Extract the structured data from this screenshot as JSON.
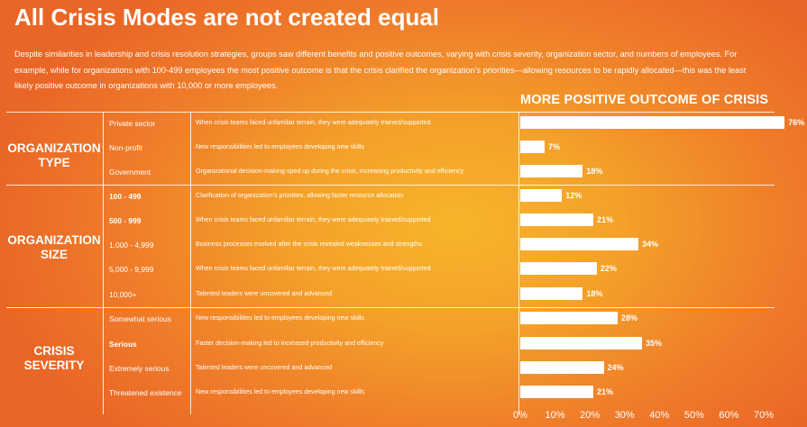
{
  "header": {
    "title": "All Crisis Modes are not created equal",
    "intro_line1": "Despite similarities in leadership and crisis resolution strategies, groups saw different benefits and positive outcomes, varying with crisis severity, organization sector, and numbers of employees. For",
    "intro_line2": "example, while for organizations with 100-499 employees the most positive outcome is that the crisis clarified the organization’s priorities—allowing resources to be rapidly allocated—this was the least",
    "intro_line3": "likely positive outcome in organizations with 10,000 or more employees."
  },
  "groups": [
    {
      "line1": "ORGANIZATION",
      "line2": "TYPE"
    },
    {
      "line1": "ORGANIZATION",
      "line2": "SIZE"
    },
    {
      "line1": "CRISIS",
      "line2": "SEVERITY"
    }
  ],
  "chart_data": {
    "type": "bar",
    "orientation": "horizontal",
    "title": "MORE POSITIVE OUTCOME OF CRISIS",
    "xlim": [
      0,
      70
    ],
    "x_ticks": [
      "0%",
      "10%",
      "20%",
      "30%",
      "40%",
      "50%",
      "60%",
      "70%"
    ],
    "categories": [
      "Private sector",
      "Non-profit",
      "Government",
      "100 - 499",
      "500 - 999",
      "1,000 - 4,999",
      "5,000 - 9,999",
      "10,000+",
      "Somewhat serious",
      "Serious",
      "Extremely serious",
      "Threatened existence"
    ],
    "outcomes": [
      "When crisis teams faced unfamiliar terrain, they were adequately trained/supported",
      "New responsibilities led to employees developing new skills",
      "Organizational decision-making sped up during the crisis, increasing productivity and efficiency",
      "Clarification of organization’s priorities, allowing faster resource allocation",
      "When crisis teams faced unfamiliar terrain, they were adequately trained/supported",
      "Business processes evolved after the crisis revealed weaknesses and strengths",
      "When crisis teams faced unfamiliar terrain, they were adequately trained/supported",
      "Talented leaders were uncovered and advanced",
      "New responsibilities led to employees developing new skills",
      "Faster decision-making led to increased productivity and efficiency",
      "Talented leaders were uncovered and advanced",
      "New responsibilities led to employees developing new skills"
    ],
    "values": [
      76,
      7,
      18,
      12,
      21,
      34,
      22,
      18,
      28,
      35,
      24,
      21
    ],
    "value_labels": [
      "76%",
      "7%",
      "18%",
      "12%",
      "21%",
      "34%",
      "22%",
      "18%",
      "28%",
      "35%",
      "24%",
      "21%"
    ],
    "bold_categories": [
      false,
      false,
      false,
      true,
      true,
      false,
      false,
      false,
      false,
      true,
      false,
      false
    ]
  }
}
